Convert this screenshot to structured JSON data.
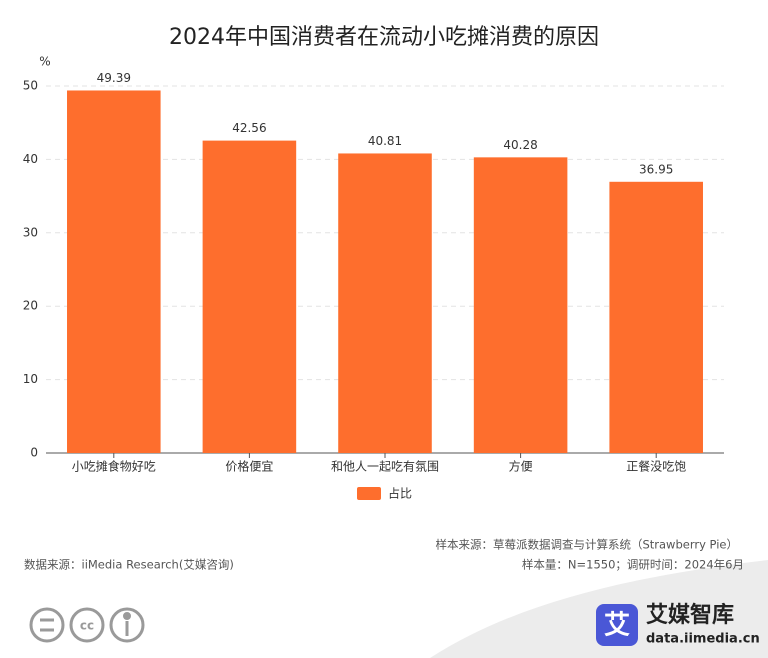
{
  "chart_data": {
    "type": "bar",
    "title": "2024年中国消费者在流动小吃摊消费的原因",
    "y_label": "%",
    "categories": [
      "小吃摊食物好吃",
      "价格便宜",
      "和他人一起吃有氛围",
      "方便",
      "正餐没吃饱"
    ],
    "series": [
      {
        "name": "占比",
        "color": "#fe6e2d",
        "values": [
          49.39,
          42.56,
          40.81,
          40.28,
          36.95
        ]
      }
    ],
    "ylim": [
      0,
      50
    ],
    "yticks": [
      0,
      10,
      20,
      30,
      40,
      50
    ],
    "grid": true,
    "legend": "bottom"
  },
  "footer": {
    "sample_source": "样本来源：草莓派数据调查与计算系统（Strawberry Pie）",
    "data_source": "数据来源：iiMedia Research(艾媒咨询)",
    "sample_info": "样本量：N=1550；调研时间：2024年6月",
    "logo_icon": "艾",
    "logo_name": "艾媒智库",
    "logo_url": "data.iimedia.cn"
  }
}
